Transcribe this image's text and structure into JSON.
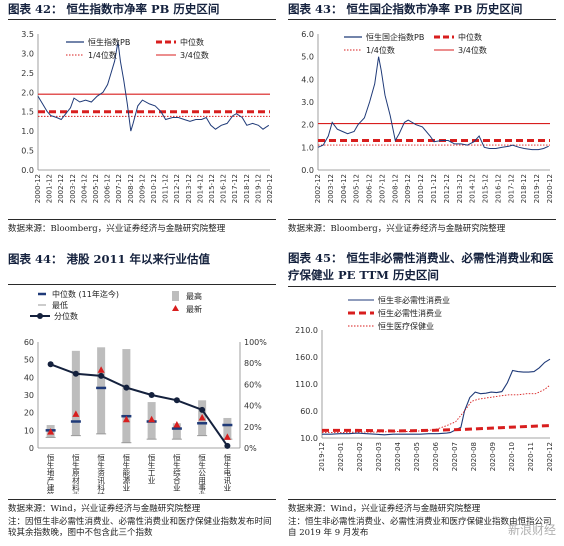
{
  "panels": {
    "p42": {
      "title": "图表 42： 恒生指数市净率 PB 历史区间",
      "source": "数据来源：Bloomberg，兴业证券经济与金融研究院整理"
    },
    "p43": {
      "title": "图表 43： 恒生国企指数市净率 PB 历史区间",
      "source": "数据来源：Bloomberg，兴业证券经济与金融研究院整理"
    },
    "p44": {
      "title": "图表 44： 港股 2011 年以来行业估值",
      "source": "数据来源：Wind，兴业证券经济与金融研究院整理",
      "note": "注：因恒生非必需性消费业、必需性消费业和医疗保健业指数发布时间较其余指数晚，图中不包含此三个指数"
    },
    "p45": {
      "title": "图表 45： 恒生非必需性消费业、必需性消费业和医疗保健业 PE TTM 历史区间",
      "source": "数据来源：Wind，兴业证券经济与金融研究院整理",
      "note": "注：恒生非必需性消费业、必需性消费业和医疗保健业指数由恒指公司自 2019 年 9 月发布"
    }
  },
  "watermark": "新浪财经",
  "colors": {
    "navy": "#1f3a78",
    "red": "#d81e1e",
    "gray": "#bdbdbd",
    "dark": "#14213d"
  },
  "chart_data": [
    {
      "id": "hsi_pb",
      "type": "line",
      "legend": [
        "恒生指数PB",
        "中位数",
        "1/4位数",
        "3/4位数"
      ],
      "x_ticks": [
        "2000-12",
        "2001-12",
        "2002-12",
        "2003-12",
        "2004-12",
        "2005-12",
        "2006-12",
        "2007-12",
        "2008-12",
        "2009-12",
        "2010-12",
        "2011-12",
        "2012-12",
        "2013-12",
        "2014-12",
        "2015-12",
        "2016-12",
        "2017-12",
        "2018-12",
        "2019-12",
        "2020-12"
      ],
      "x_range": [
        2000.9,
        2020.9
      ],
      "ylim": [
        0,
        3.5
      ],
      "y_ticks": [
        "0.0",
        "0.5",
        "1.0",
        "1.5",
        "2.0",
        "2.5",
        "3.0",
        "3.5"
      ],
      "y_tick_values": [
        0,
        0.5,
        1.0,
        1.5,
        2.0,
        2.5,
        3.0,
        3.5
      ],
      "median": 1.5,
      "q1": 1.38,
      "q3": 1.95,
      "series": {
        "x": [
          2000.9,
          2001.3,
          2001.7,
          2002.0,
          2002.5,
          2002.9,
          2003.3,
          2003.7,
          2004.0,
          2004.5,
          2005.0,
          2005.5,
          2006.0,
          2006.5,
          2006.9,
          2007.2,
          2007.5,
          2007.8,
          2008.0,
          2008.3,
          2008.6,
          2008.9,
          2009.1,
          2009.5,
          2009.9,
          2010.5,
          2011.0,
          2011.5,
          2011.9,
          2012.5,
          2013.0,
          2013.5,
          2014.0,
          2014.5,
          2015.0,
          2015.4,
          2015.8,
          2016.2,
          2016.7,
          2017.2,
          2017.7,
          2018.0,
          2018.5,
          2018.9,
          2019.4,
          2019.9,
          2020.3,
          2020.8
        ],
        "y": [
          1.9,
          1.7,
          1.5,
          1.4,
          1.35,
          1.3,
          1.45,
          1.6,
          1.85,
          1.75,
          1.8,
          1.75,
          1.9,
          2.0,
          2.2,
          2.5,
          2.8,
          3.3,
          2.8,
          2.3,
          1.7,
          1.0,
          1.2,
          1.65,
          1.8,
          1.7,
          1.65,
          1.5,
          1.3,
          1.35,
          1.35,
          1.3,
          1.25,
          1.3,
          1.3,
          1.35,
          1.15,
          1.05,
          1.15,
          1.2,
          1.4,
          1.45,
          1.35,
          1.15,
          1.2,
          1.15,
          1.05,
          1.15
        ]
      }
    },
    {
      "id": "hscei_pb",
      "type": "line",
      "legend": [
        "恒生国企指数PB",
        "中位数",
        "1/4位数",
        "3/4位数"
      ],
      "x_ticks": [
        "2002-12",
        "2003-12",
        "2004-12",
        "2005-12",
        "2006-12",
        "2007-12",
        "2008-12",
        "2009-12",
        "2010-12",
        "2011-12",
        "2012-12",
        "2013-12",
        "2014-12",
        "2015-12",
        "2016-12",
        "2017-12",
        "2018-12",
        "2019-12",
        "2020-12"
      ],
      "x_range": [
        2002.9,
        2020.9
      ],
      "ylim": [
        0,
        6
      ],
      "y_ticks": [
        "0.0",
        "1.0",
        "2.0",
        "3.0",
        "4.0",
        "5.0",
        "6.0"
      ],
      "y_tick_values": [
        0,
        1,
        2,
        3,
        4,
        5,
        6
      ],
      "median": 1.3,
      "q1": 1.1,
      "q3": 2.05,
      "series": {
        "x": [
          2002.9,
          2003.3,
          2003.7,
          2004.0,
          2004.4,
          2004.8,
          2005.2,
          2005.7,
          2006.0,
          2006.5,
          2006.9,
          2007.3,
          2007.6,
          2007.8,
          2008.1,
          2008.5,
          2008.9,
          2009.2,
          2009.6,
          2009.9,
          2010.5,
          2011.0,
          2011.6,
          2011.9,
          2012.5,
          2013.0,
          2013.5,
          2014.0,
          2014.5,
          2015.0,
          2015.4,
          2015.8,
          2016.2,
          2016.7,
          2017.2,
          2017.7,
          2018.0,
          2018.5,
          2018.9,
          2019.5,
          2020.0,
          2020.4,
          2020.8
        ],
        "y": [
          1.0,
          1.1,
          1.5,
          2.1,
          1.8,
          1.7,
          1.6,
          1.7,
          2.0,
          2.3,
          3.0,
          3.8,
          5.0,
          4.4,
          3.3,
          2.4,
          1.3,
          1.6,
          2.1,
          2.2,
          2.0,
          1.9,
          1.5,
          1.25,
          1.3,
          1.3,
          1.15,
          1.15,
          1.1,
          1.25,
          1.5,
          1.0,
          0.95,
          0.95,
          1.0,
          1.05,
          1.1,
          1.0,
          0.95,
          0.9,
          0.9,
          0.95,
          1.05
        ]
      }
    },
    {
      "id": "sector_valuation",
      "type": "bar",
      "legend": [
        "中位数 (11年迄今)",
        "最低",
        "分位数",
        "最高",
        "最新"
      ],
      "categories": [
        "恒生地产建筑业",
        "恒生原材料业",
        "恒生资讯科技业",
        "恒生能源业",
        "恒生工业",
        "恒生综合业",
        "恒生公用事业",
        "恒生电讯业"
      ],
      "ylim_left": [
        0,
        60
      ],
      "y_ticks_left": [
        "0",
        "10",
        "20",
        "30",
        "40",
        "50",
        "60"
      ],
      "y_tick_values_left": [
        0,
        10,
        20,
        30,
        40,
        50,
        60
      ],
      "ylim_right": [
        0,
        100
      ],
      "y_ticks_right": [
        "0%",
        "20%",
        "40%",
        "60%",
        "80%",
        "100%"
      ],
      "y_tick_values_right": [
        0,
        20,
        40,
        60,
        80,
        100
      ],
      "max": [
        13,
        55,
        57,
        56,
        26,
        14,
        27,
        17
      ],
      "min": [
        6,
        7,
        8,
        3,
        5,
        5,
        7,
        5
      ],
      "median": [
        10,
        15,
        34,
        18,
        15,
        11,
        14,
        13
      ],
      "latest": [
        9,
        19,
        44,
        16,
        16,
        13,
        17,
        6
      ],
      "percentile": [
        79,
        70,
        68,
        57,
        50,
        45,
        36,
        2
      ]
    },
    {
      "id": "consumer_health_pe",
      "type": "line",
      "legend": [
        "恒生非必需性消费业",
        "恒生必需性消费业",
        "恒生医疗保健业"
      ],
      "x_ticks": [
        "2019-12",
        "2020-01",
        "2020-02",
        "2020-03",
        "2020-04",
        "2020-05",
        "2020-06",
        "2020-07",
        "2020-08",
        "2020-09",
        "2020-10",
        "2020-11",
        "2020-12"
      ],
      "ylim": [
        10,
        210
      ],
      "y_ticks": [
        "10.0",
        "60.0",
        "110.0",
        "160.0",
        "210.0"
      ],
      "y_tick_values": [
        10,
        60,
        110,
        160,
        210
      ],
      "series": [
        {
          "name": "恒生非必需性消费业",
          "x": [
            0,
            0.5,
            1,
            1.5,
            2,
            2.5,
            3,
            3.5,
            4,
            4.5,
            5,
            5.5,
            6,
            6.5,
            7,
            7.2,
            7.5,
            7.8,
            8,
            8.3,
            8.6,
            8.9,
            9.2,
            9.5,
            9.8,
            10.1,
            10.4,
            10.7,
            11,
            11.3,
            11.6,
            11.9,
            12.2,
            12.5,
            12.8
          ],
          "y": [
            17,
            17,
            18,
            18,
            19,
            18,
            17,
            16,
            17,
            17,
            17,
            17,
            18,
            18,
            19,
            20,
            25,
            30,
            60,
            85,
            95,
            92,
            93,
            95,
            94,
            96,
            112,
            135,
            133,
            132,
            132,
            133,
            140,
            150,
            156
          ]
        },
        {
          "name": "恒生必需性消费业",
          "x": [
            0,
            2,
            4,
            6,
            8,
            10,
            12,
            12.8
          ],
          "y": [
            24,
            24,
            23,
            24,
            26,
            29,
            32,
            33
          ]
        },
        {
          "name": "恒生医疗保健业",
          "x": [
            0,
            1,
            2,
            3,
            4,
            5,
            6,
            6.5,
            7,
            7.5,
            8,
            8.4,
            8.8,
            9.2,
            9.6,
            10,
            10.5,
            11,
            11.5,
            12,
            12.5,
            12.8
          ],
          "y": [
            20,
            20,
            21,
            21,
            22,
            22,
            24,
            27,
            33,
            40,
            60,
            78,
            82,
            84,
            86,
            88,
            90,
            90,
            92,
            92,
            100,
            108
          ]
        }
      ]
    }
  ]
}
